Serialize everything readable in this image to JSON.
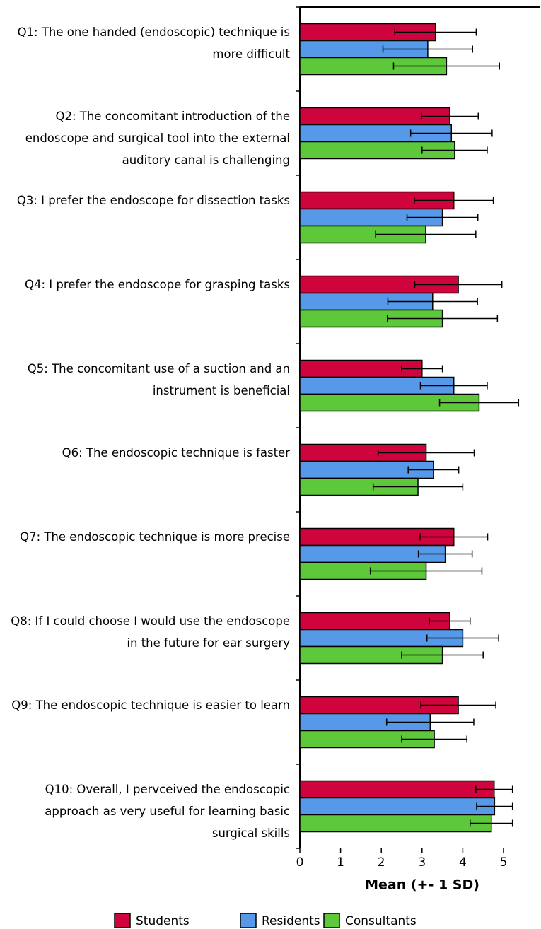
{
  "chart_data": {
    "type": "hbar",
    "x_label": "Mean (+- 1 SD)",
    "categories": [
      "Q1: The one handed (endoscopic) technique is more difficult",
      "Q2: The concomitant introduction of the endoscope and surgical tool into the external auditory canal is challenging",
      "Q3: I prefer the endoscope for dissection tasks",
      "Q4: I prefer the endoscope for grasping tasks",
      "Q5: The concomitant use of a suction and an instrument is beneficial",
      "Q6: The endoscopic technique is faster",
      "Q7: The endoscopic technique is more precise",
      "Q8: If I could choose I would use the endoscope in the future for ear surgery",
      "Q9: The endoscopic technique is easier to learn",
      "Q10: Overall, I pervceived the endoscopic approach as very useful for learning basic surgical skills"
    ],
    "series": [
      {
        "name": "Students",
        "color": "#d0043c",
        "values": [
          3.33,
          3.68,
          3.78,
          3.89,
          3.0,
          3.1,
          3.78,
          3.68,
          3.89,
          4.77
        ],
        "errors": [
          1.0,
          0.7,
          0.97,
          1.07,
          0.5,
          1.18,
          0.83,
          0.5,
          0.92,
          0.45
        ]
      },
      {
        "name": "Residents",
        "color": "#5599e8",
        "values": [
          3.14,
          3.72,
          3.5,
          3.26,
          3.78,
          3.28,
          3.57,
          4.0,
          3.2,
          4.78
        ],
        "errors": [
          1.1,
          1.0,
          0.87,
          1.1,
          0.82,
          0.62,
          0.66,
          0.88,
          1.07,
          0.44
        ]
      },
      {
        "name": "Consultants",
        "color": "#5cc83a",
        "values": [
          3.6,
          3.8,
          3.09,
          3.5,
          4.4,
          2.9,
          3.1,
          3.5,
          3.3,
          4.7
        ],
        "errors": [
          1.3,
          0.8,
          1.23,
          1.35,
          0.97,
          1.1,
          1.37,
          1.0,
          0.8,
          0.52
        ]
      }
    ],
    "xlim": [
      0,
      5.9
    ],
    "xticks": [
      0,
      1,
      2,
      3,
      4,
      5
    ],
    "legend": "bottom"
  }
}
